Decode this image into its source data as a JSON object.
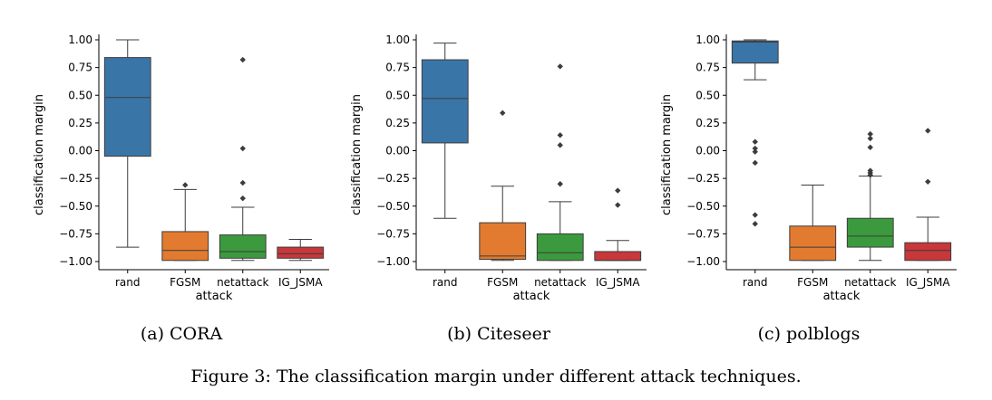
{
  "figure": {
    "caption": "Figure 3: The classification margin under different attack techniques."
  },
  "colors": {
    "rand": "#3a75a8",
    "FGSM": "#e27b2f",
    "netattack": "#3b9a3d",
    "IG_JSMA": "#c8373a"
  },
  "chart_data": [
    {
      "type": "box",
      "caption": "(a) CORA",
      "xlabel": "attack",
      "ylabel": "classification margin",
      "ylim": [
        -1.0,
        1.0
      ],
      "yticks": [
        "1.00",
        "0.75",
        "0.50",
        "0.25",
        "0.00",
        "−0.25",
        "−0.50",
        "−0.75",
        "−1.00"
      ],
      "categories": [
        "rand",
        "FGSM",
        "netattack",
        "IG_JSMA"
      ],
      "boxes": [
        {
          "min": -0.87,
          "q1": -0.05,
          "median": 0.48,
          "q3": 0.84,
          "max": 1.0,
          "outliers": []
        },
        {
          "min": -0.99,
          "q1": -0.99,
          "median": -0.9,
          "q3": -0.73,
          "max": -0.35,
          "outliers": [
            -0.31
          ]
        },
        {
          "min": -0.99,
          "q1": -0.97,
          "median": -0.91,
          "q3": -0.76,
          "max": -0.51,
          "outliers": [
            0.82,
            0.02,
            -0.29,
            -0.43
          ]
        },
        {
          "min": -0.99,
          "q1": -0.97,
          "median": -0.93,
          "q3": -0.87,
          "max": -0.8,
          "outliers": []
        }
      ]
    },
    {
      "type": "box",
      "caption": "(b) Citeseer",
      "xlabel": "attack",
      "ylabel": "classification margin",
      "ylim": [
        -1.0,
        1.0
      ],
      "yticks": [
        "1.00",
        "0.75",
        "0.50",
        "0.25",
        "0.00",
        "−0.25",
        "−0.50",
        "−0.75",
        "−1.00"
      ],
      "categories": [
        "rand",
        "FGSM",
        "netattack",
        "IG_JSMA"
      ],
      "boxes": [
        {
          "min": -0.61,
          "q1": 0.07,
          "median": 0.47,
          "q3": 0.82,
          "max": 0.97,
          "outliers": []
        },
        {
          "min": -0.99,
          "q1": -0.98,
          "median": -0.95,
          "q3": -0.65,
          "max": -0.32,
          "outliers": [
            0.34
          ]
        },
        {
          "min": -0.99,
          "q1": -0.99,
          "median": -0.92,
          "q3": -0.75,
          "max": -0.46,
          "outliers": [
            0.76,
            0.14,
            0.05,
            -0.3
          ]
        },
        {
          "min": -0.99,
          "q1": -0.99,
          "median": -0.99,
          "q3": -0.91,
          "max": -0.81,
          "outliers": [
            -0.36,
            -0.49
          ]
        }
      ]
    },
    {
      "type": "box",
      "caption": "(c) polblogs",
      "xlabel": "attack",
      "ylabel": "classification margin",
      "ylim": [
        -1.0,
        1.0
      ],
      "yticks": [
        "1.00",
        "0.75",
        "0.50",
        "0.25",
        "0.00",
        "−0.25",
        "−0.50",
        "−0.75",
        "−1.00"
      ],
      "categories": [
        "rand",
        "FGSM",
        "netattack",
        "IG_JSMA"
      ],
      "boxes": [
        {
          "min": 0.64,
          "q1": 0.79,
          "median": 0.98,
          "q3": 0.99,
          "max": 1.0,
          "outliers": [
            0.08,
            0.02,
            -0.01,
            -0.11,
            -0.58,
            -0.66
          ]
        },
        {
          "min": -0.99,
          "q1": -0.99,
          "median": -0.87,
          "q3": -0.68,
          "max": -0.31,
          "outliers": []
        },
        {
          "min": -0.99,
          "q1": -0.87,
          "median": -0.77,
          "q3": -0.61,
          "max": -0.23,
          "outliers": [
            0.15,
            0.11,
            0.03,
            -0.18,
            -0.2,
            -0.22
          ]
        },
        {
          "min": -0.99,
          "q1": -0.99,
          "median": -0.9,
          "q3": -0.83,
          "max": -0.6,
          "outliers": [
            0.18,
            -0.28
          ]
        }
      ]
    }
  ]
}
